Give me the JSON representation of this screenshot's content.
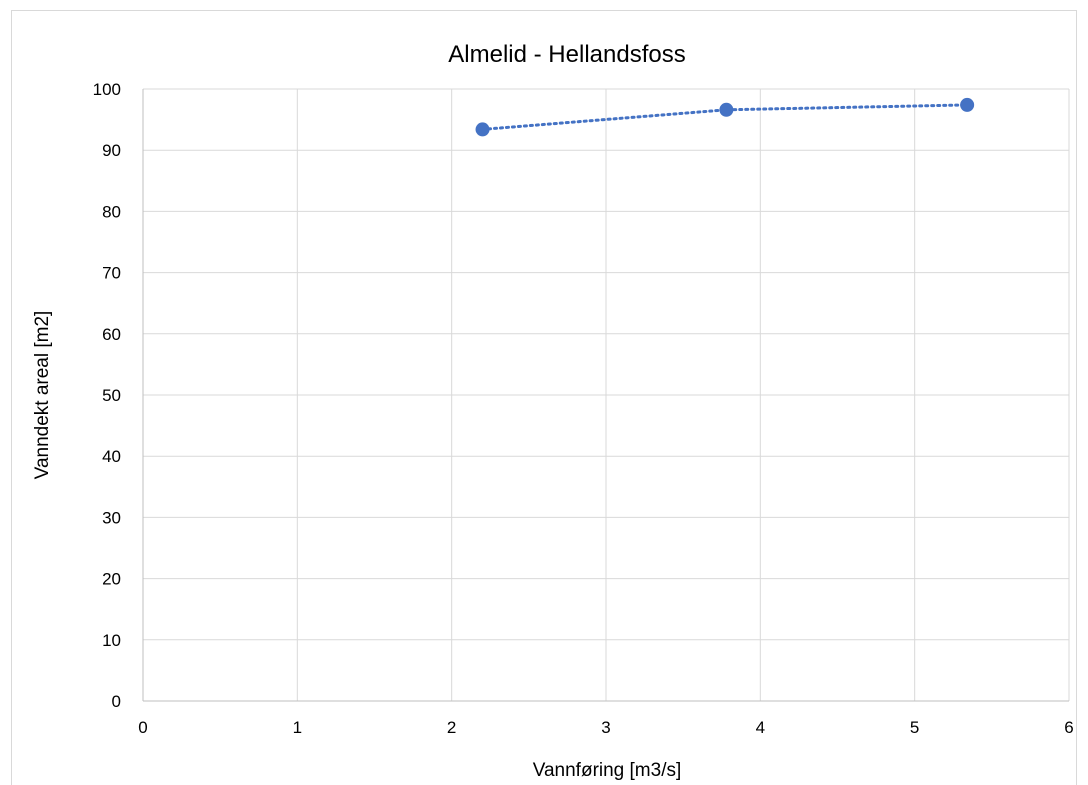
{
  "chart_data": {
    "type": "scatter",
    "title": "Almelid - Hellandsfoss",
    "xlabel": "Vannføring [m3/s]",
    "ylabel": "Vanndekt areal [m2]",
    "xlim": [
      0,
      6
    ],
    "ylim": [
      0,
      100
    ],
    "x_ticks": [
      0,
      1,
      2,
      3,
      4,
      5,
      6
    ],
    "y_ticks": [
      0,
      10,
      20,
      30,
      40,
      50,
      60,
      70,
      80,
      90,
      100
    ],
    "grid": true,
    "legend": "none",
    "series": [
      {
        "color": "#4472c4",
        "line_style": "dotted",
        "x": [
          2.2,
          3.78,
          5.34
        ],
        "y": [
          93.4,
          96.6,
          97.4
        ]
      }
    ]
  }
}
